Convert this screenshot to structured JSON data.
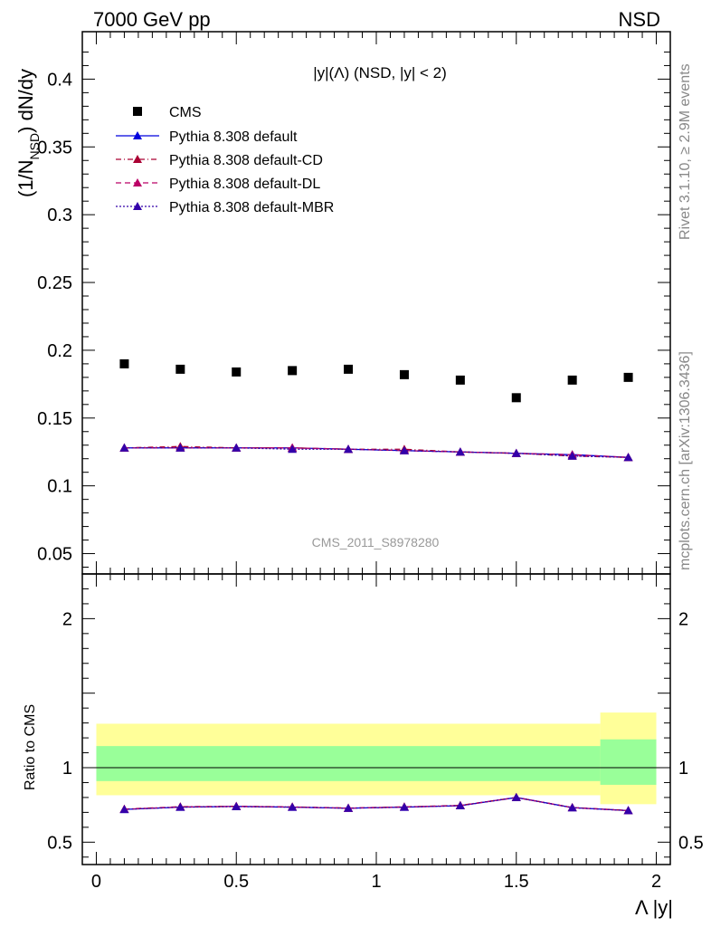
{
  "header": {
    "left": "7000 GeV pp",
    "right": "NSD"
  },
  "side_labels": {
    "rivet": "Rivet 3.1.10, ≥ 2.9M events",
    "mcplots": "mcplots.cern.ch [arXiv:1306.3436]"
  },
  "watermark": "CMS_2011_S8978280",
  "chart_data": {
    "type": "scatter",
    "title": "|y|(Λ) (NSD, |y| < 2)",
    "ylabel_main": "(1/N",
    "ylabel_sub": "NSD",
    "ylabel_tail": ") dN/dy",
    "ylabel_ratio": "Ratio to CMS",
    "xlabel": "Λ |y|",
    "xlim": [
      -0.05,
      2.05
    ],
    "ylim_main": [
      0.035,
      0.435
    ],
    "ylim_ratio": [
      0.35,
      2.3
    ],
    "main_yticks": [
      "0.05",
      "0.1",
      "0.15",
      "0.2",
      "0.25",
      "0.3",
      "0.35",
      "0.4"
    ],
    "ratio_yticks": [
      "0.5",
      "1",
      "2"
    ],
    "xticks": [
      "0",
      "0.5",
      "1",
      "1.5",
      "2"
    ],
    "legend_position": "top-left",
    "x": [
      0.1,
      0.3,
      0.5,
      0.7,
      0.9,
      1.1,
      1.3,
      1.5,
      1.7,
      1.9
    ],
    "cms": {
      "name": "CMS",
      "color": "#000000",
      "values": [
        0.19,
        0.186,
        0.184,
        0.185,
        0.186,
        0.182,
        0.178,
        0.165,
        0.178,
        0.18
      ]
    },
    "bands": [
      {
        "x0": 0.0,
        "x1": 1.8,
        "yellow": [
          0.815,
          1.295
        ],
        "green": [
          0.91,
          1.145
        ]
      },
      {
        "x0": 1.8,
        "x1": 2.0,
        "yellow": [
          0.755,
          1.37
        ],
        "green": [
          0.885,
          1.19
        ]
      }
    ],
    "series": [
      {
        "name": "Pythia 8.308 default",
        "color": "#0000dd",
        "dash": "none",
        "values": [
          0.128,
          0.128,
          0.128,
          0.128,
          0.127,
          0.126,
          0.125,
          0.124,
          0.123,
          0.121
        ],
        "ratio": [
          0.72,
          0.735,
          0.74,
          0.735,
          0.728,
          0.735,
          0.745,
          0.8,
          0.732,
          0.712
        ]
      },
      {
        "name": "Pythia 8.308 default-CD",
        "color": "#aa0033",
        "dash": "6,3,1,3",
        "values": [
          0.128,
          0.129,
          0.128,
          0.128,
          0.127,
          0.127,
          0.125,
          0.124,
          0.122,
          0.121
        ],
        "ratio": [
          0.722,
          0.738,
          0.741,
          0.737,
          0.729,
          0.737,
          0.747,
          0.8,
          0.733,
          0.713
        ]
      },
      {
        "name": "Pythia 8.308 default-DL",
        "color": "#bb0066",
        "dash": "6,4",
        "values": [
          0.128,
          0.128,
          0.128,
          0.128,
          0.127,
          0.126,
          0.125,
          0.124,
          0.123,
          0.121
        ],
        "ratio": [
          0.721,
          0.736,
          0.74,
          0.736,
          0.728,
          0.736,
          0.746,
          0.8,
          0.732,
          0.712
        ]
      },
      {
        "name": "Pythia 8.308 default-MBR",
        "color": "#3300aa",
        "dash": "2,2",
        "values": [
          0.128,
          0.128,
          0.128,
          0.127,
          0.127,
          0.126,
          0.125,
          0.124,
          0.122,
          0.121
        ],
        "ratio": [
          0.72,
          0.735,
          0.739,
          0.735,
          0.728,
          0.735,
          0.745,
          0.8,
          0.731,
          0.712
        ]
      }
    ]
  }
}
